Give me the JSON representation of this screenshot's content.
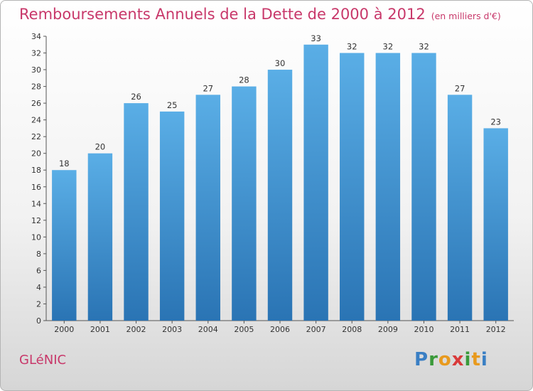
{
  "title": "Remboursements Annuels de la Dette de 2000 à 2012",
  "unit": "(en milliers d'€)",
  "commune": "GLéNIC",
  "logo": {
    "letters": [
      "P",
      "r",
      "o",
      "x",
      "i",
      "t",
      "i"
    ],
    "colors": [
      "#3a7fc4",
      "#3a9a3a",
      "#e89a1e",
      "#d93a3a",
      "#3a9a3a",
      "#e89a1e",
      "#3a7fc4"
    ]
  },
  "colors": {
    "accent": "#c8386a",
    "bar_top": "#5aaee6",
    "bar_bottom": "#2a74b4"
  },
  "chart_data": {
    "type": "bar",
    "categories": [
      "2000",
      "2001",
      "2002",
      "2003",
      "2004",
      "2005",
      "2006",
      "2007",
      "2008",
      "2009",
      "2010",
      "2011",
      "2012"
    ],
    "values": [
      18,
      20,
      26,
      25,
      27,
      28,
      30,
      33,
      32,
      32,
      32,
      27,
      23
    ],
    "ylim": [
      0,
      34
    ],
    "yticks": [
      0,
      2,
      4,
      6,
      8,
      10,
      12,
      14,
      16,
      18,
      20,
      22,
      24,
      26,
      28,
      30,
      32,
      34
    ],
    "grid": false,
    "title": "Remboursements Annuels de la Dette de 2000 à 2012",
    "xlabel": "",
    "ylabel": ""
  }
}
